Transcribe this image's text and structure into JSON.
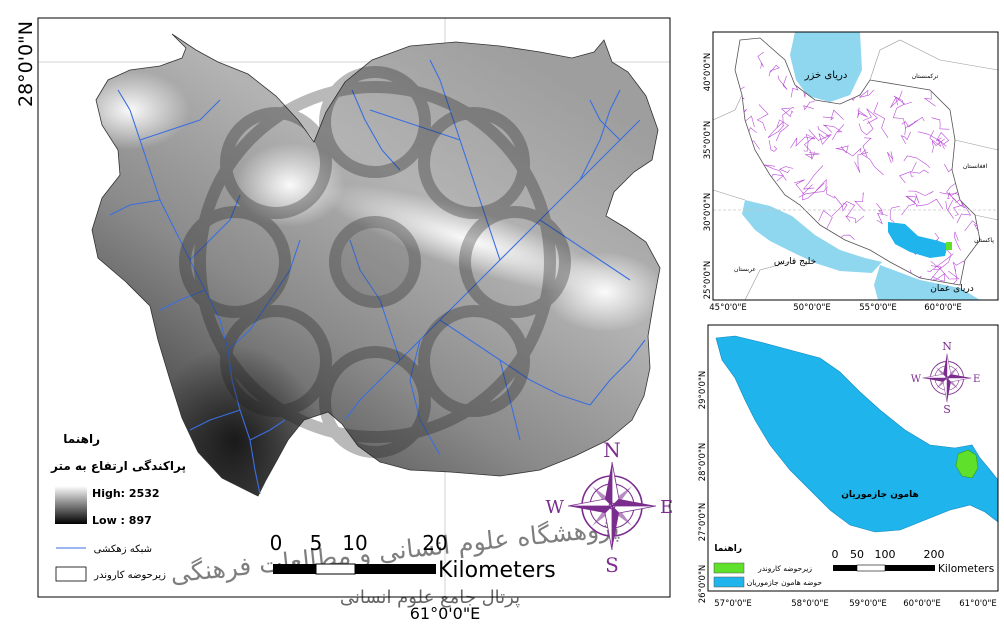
{
  "main_map": {
    "lat_label": "28°0'0\"N",
    "lon_label": "61°0'0\"E",
    "legend": {
      "title": "راهنما",
      "elevation_title": "پراکندگی ارتفاع به متر",
      "high": "High: 2532",
      "low": "Low : 897",
      "drainage": "شبکه زهکشی",
      "subbasin": "زیرحوضه کاروندر"
    },
    "scale": {
      "ticks": [
        "0",
        "5",
        "10",
        "20"
      ],
      "unit": "Kilometers"
    },
    "compass": {
      "n": "N",
      "e": "E",
      "s": "S",
      "w": "W"
    }
  },
  "iran_inset": {
    "lat_labels": [
      "40°0'0\"N",
      "35°0'0\"N",
      "30°0'0\"N",
      "25°0'0\"N"
    ],
    "lon_labels": [
      "45°0'0\"E",
      "50°0'0\"E",
      "55°0'0\"E",
      "60°0'0\"E"
    ],
    "water": {
      "caspian": "دریای خزر",
      "persian_gulf": "خلیج فارس",
      "oman_sea": "دریای عمان"
    },
    "countries": [
      "ترکمنستان",
      "افغانستان",
      "پاکستان",
      "عربستان"
    ]
  },
  "basin_inset": {
    "lat_labels": [
      "29°0'0\"N",
      "28°0'0\"N",
      "27°0'0\"N",
      "26°0'0\"N"
    ],
    "lon_labels": [
      "57°0'0\"E",
      "58°0'0\"E",
      "59°0'0\"E",
      "60°0'0\"E",
      "61°0'0\"E"
    ],
    "basin_label": "هامون جازموریان",
    "legend": {
      "title": "راهنما",
      "subbasin": "زیرحوضه کاروندر",
      "basin": "حوضه هامون جازموریان"
    },
    "scale": {
      "ticks": [
        "0",
        "50",
        "100",
        "200"
      ],
      "unit": "Kilometers"
    },
    "compass": {
      "n": "N",
      "e": "E",
      "s": "S",
      "w": "W"
    }
  },
  "watermark": [
    "پژوهشگاه علوم انسانی و مطالعات فرهنگی",
    "پرتال جامع علوم انسانی"
  ],
  "colors": {
    "compass": "#7b2d8e",
    "drainage": "#3a6fe0",
    "basin": "#1fb4ec",
    "subbasin": "#5fe02a",
    "sea": "#8fd6ef",
    "network": "#b94ad6"
  }
}
